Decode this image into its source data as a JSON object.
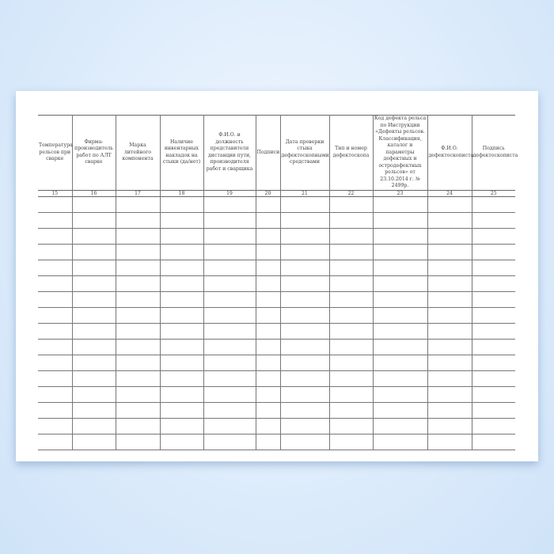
{
  "columns": [
    {
      "header": "Температура рельсов при сварке",
      "number": "15"
    },
    {
      "header": "Фирма-производитель работ по АЛТ сварке",
      "number": "16"
    },
    {
      "header": "Марка литейного компонента",
      "number": "17"
    },
    {
      "header": "Наличие инвентарных накладок на стыки (да/нет)",
      "number": "18"
    },
    {
      "header": "Ф.И.О. и должность представителя дистанции пути, производителя работ и сварщика",
      "number": "19"
    },
    {
      "header": "Подписи",
      "number": "20"
    },
    {
      "header": "Дата проверки стыка дефектоскопными средствами",
      "number": "21"
    },
    {
      "header": "Тип и номер дефектоскопа",
      "number": "22"
    },
    {
      "header": "Код дефекта рельса по Инструкции «Дефекты рельсов. Классификация, каталог и параметры дефектных и остродефектных рельсов» от 23.10.2014 г. № 2499р.",
      "number": "23"
    },
    {
      "header": "Ф.И.О. дефектоскописта",
      "number": "24"
    },
    {
      "header": "Подпись дефектоскописта",
      "number": "25"
    }
  ],
  "blank_rows": 16
}
